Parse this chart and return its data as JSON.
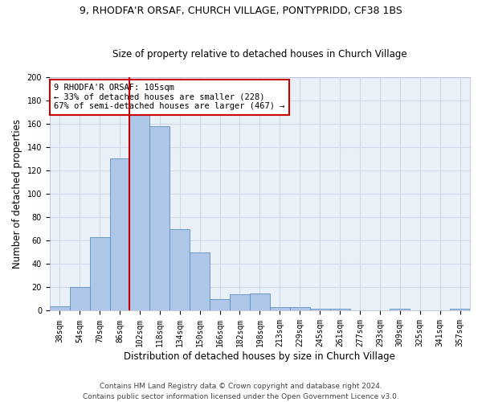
{
  "title_line1": "9, RHODFA'R ORSAF, CHURCH VILLAGE, PONTYPRIDD, CF38 1BS",
  "title_line2": "Size of property relative to detached houses in Church Village",
  "xlabel": "Distribution of detached houses by size in Church Village",
  "ylabel": "Number of detached properties",
  "bar_values": [
    4,
    20,
    63,
    130,
    168,
    158,
    70,
    50,
    10,
    14,
    15,
    3,
    3,
    2,
    2,
    0,
    0,
    2,
    0,
    0,
    2
  ],
  "bar_labels": [
    "38sqm",
    "54sqm",
    "70sqm",
    "86sqm",
    "102sqm",
    "118sqm",
    "134sqm",
    "150sqm",
    "166sqm",
    "182sqm",
    "198sqm",
    "213sqm",
    "229sqm",
    "245sqm",
    "261sqm",
    "277sqm",
    "293sqm",
    "309sqm",
    "325sqm",
    "341sqm",
    "357sqm"
  ],
  "bar_color": "#aec6e8",
  "bar_edge_color": "#5a8fc2",
  "grid_color": "#d0d8e8",
  "bg_color": "#eaf0f8",
  "vline_color": "#cc0000",
  "vline_x": 4.0,
  "annotation_text": "9 RHODFA'R ORSAF: 105sqm\n← 33% of detached houses are smaller (228)\n67% of semi-detached houses are larger (467) →",
  "annotation_box_color": "#ffffff",
  "annotation_edge_color": "#cc0000",
  "footer_line1": "Contains HM Land Registry data © Crown copyright and database right 2024.",
  "footer_line2": "Contains public sector information licensed under the Open Government Licence v3.0.",
  "ylim": [
    0,
    200
  ],
  "yticks": [
    0,
    20,
    40,
    60,
    80,
    100,
    120,
    140,
    160,
    180,
    200
  ],
  "title1_fontsize": 9.0,
  "title2_fontsize": 8.5,
  "ylabel_fontsize": 8.5,
  "xlabel_fontsize": 8.5,
  "tick_fontsize": 7.0,
  "footer_fontsize": 6.5,
  "annotation_fontsize": 7.5
}
